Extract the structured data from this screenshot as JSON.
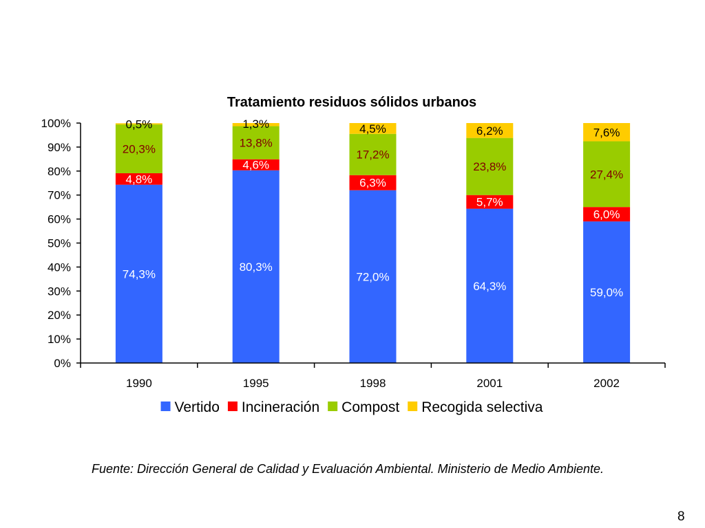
{
  "slide": {
    "source_note": "Fuente: Dirección General de Calidad y Evaluación Ambiental. Ministerio de Medio Ambiente.",
    "page_number": "8"
  },
  "chart_data": {
    "type": "bar",
    "stacked": true,
    "title": "Tratamiento residuos sólidos urbanos",
    "categories": [
      "1990",
      "1995",
      "1998",
      "2001",
      "2002"
    ],
    "y_ticks": [
      "0%",
      "10%",
      "20%",
      "30%",
      "40%",
      "50%",
      "60%",
      "70%",
      "80%",
      "90%",
      "100%"
    ],
    "ylim": [
      0,
      100
    ],
    "legend_position": "bottom",
    "grid": false,
    "series": [
      {
        "name": "Vertido",
        "color": "#3366FF",
        "label_color": "#FFFFFF",
        "values": [
          74.3,
          80.3,
          72.0,
          64.3,
          59.0
        ],
        "labels": [
          "74,3%",
          "80,3%",
          "72,0%",
          "64,3%",
          "59,0%"
        ]
      },
      {
        "name": "Incineración",
        "color": "#FF0000",
        "label_color": "#FFFFFF",
        "values": [
          4.8,
          4.6,
          6.3,
          5.7,
          6.0
        ],
        "labels": [
          "4,8%",
          "4,6%",
          "6,3%",
          "5,7%",
          "6,0%"
        ]
      },
      {
        "name": "Compost",
        "color": "#99CC00",
        "label_color": "#800000",
        "values": [
          20.3,
          13.8,
          17.2,
          23.8,
          27.4
        ],
        "labels": [
          "20,3%",
          "13,8%",
          "17,2%",
          "23,8%",
          "27,4%"
        ]
      },
      {
        "name": "Recogida selectiva",
        "color": "#FFCC00",
        "label_color": "#000000",
        "values": [
          0.5,
          1.3,
          4.5,
          6.2,
          7.6
        ],
        "labels": [
          "0,5%",
          "1,3%",
          "4,5%",
          "6,2%",
          "7,6%"
        ]
      }
    ]
  }
}
